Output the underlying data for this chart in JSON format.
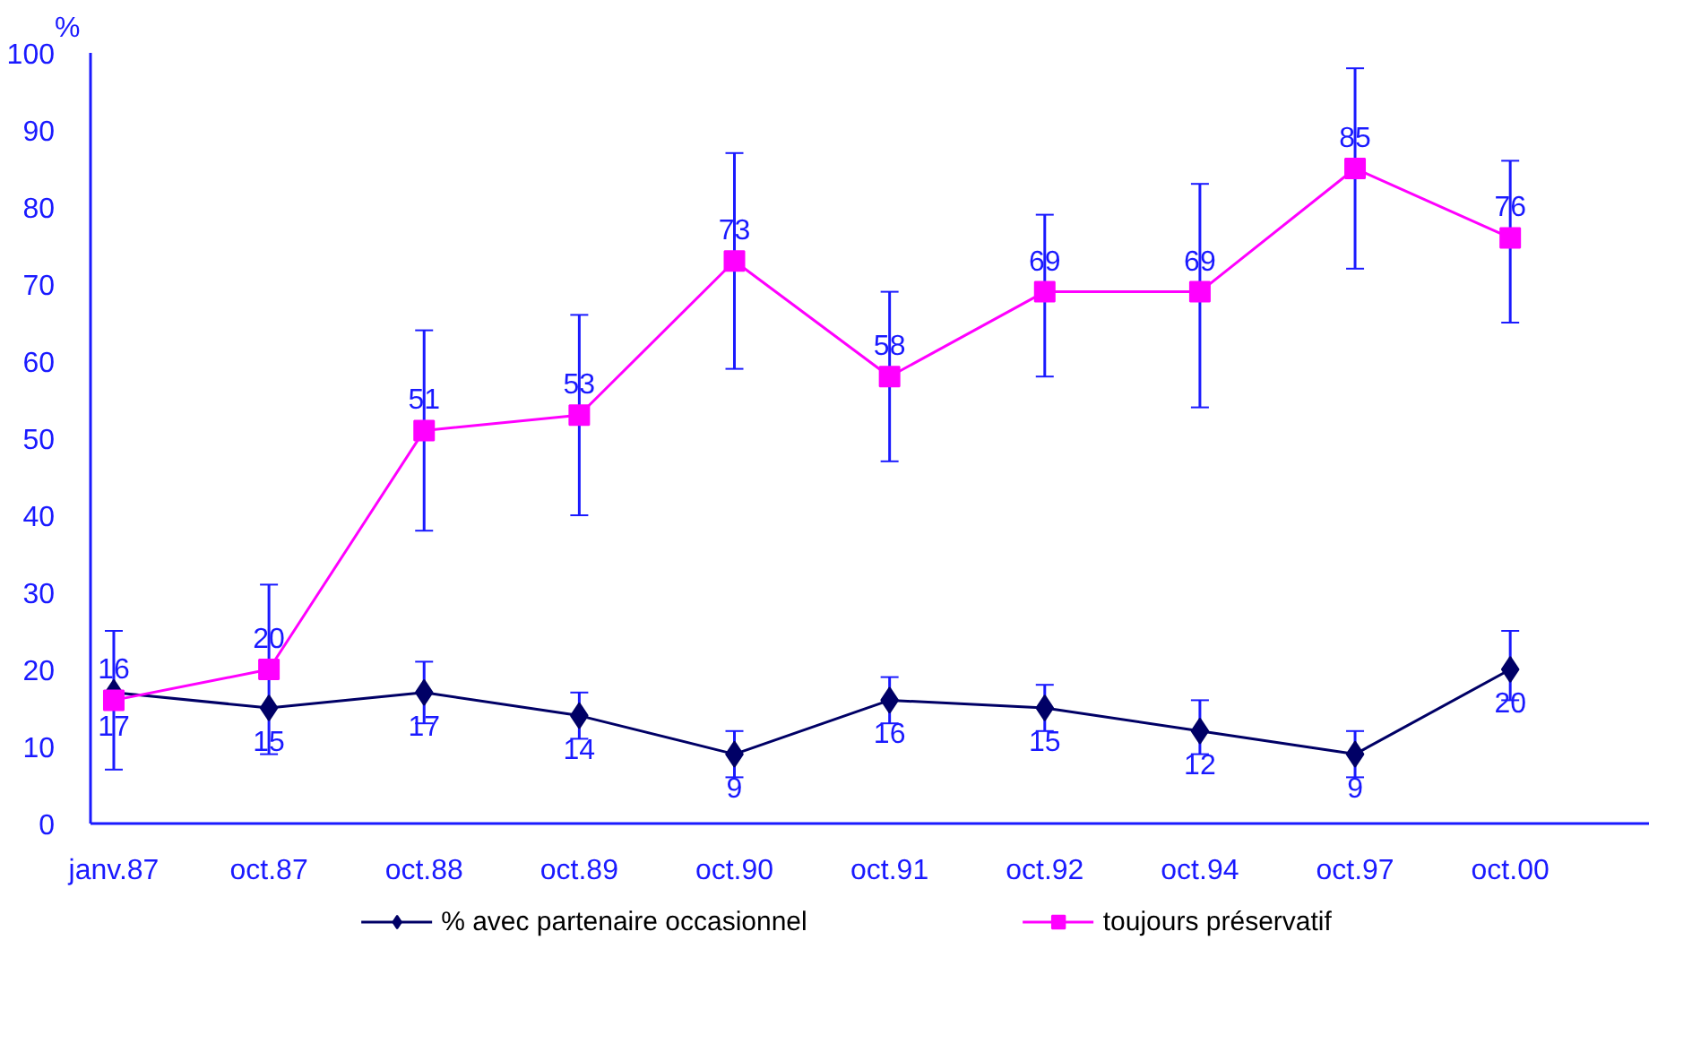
{
  "chart_data": {
    "type": "line",
    "ylabel": "%",
    "categories": [
      "janv.87",
      "oct.87",
      "oct.88",
      "oct.89",
      "oct.90",
      "oct.91",
      "oct.92",
      "oct.94",
      "oct.97",
      "oct.00"
    ],
    "series": [
      {
        "name": "% avec partenaire occasionnel",
        "color": "#000066",
        "marker": "diamond",
        "values": [
          17,
          15,
          17,
          14,
          9,
          16,
          15,
          12,
          9,
          20
        ],
        "errors": [
          null,
          null,
          4,
          [
            11,
            17
          ],
          [
            6,
            12
          ],
          [
            13,
            19
          ],
          [
            12,
            18
          ],
          [
            9,
            16
          ],
          [
            6,
            12
          ],
          [
            16,
            25
          ]
        ]
      },
      {
        "name": "toujours préservatif",
        "color": "#ff00ff",
        "marker": "square",
        "values": [
          16,
          20,
          51,
          53,
          73,
          58,
          69,
          69,
          85,
          76
        ],
        "errors": [
          [
            7,
            25
          ],
          [
            9,
            31
          ],
          [
            38,
            64
          ],
          [
            40,
            66
          ],
          [
            59,
            87
          ],
          [
            47,
            69
          ],
          [
            58,
            79
          ],
          [
            54,
            83
          ],
          [
            72,
            98
          ],
          [
            65,
            86
          ]
        ]
      }
    ],
    "ylim": [
      0,
      100
    ],
    "yticks": [
      0,
      10,
      20,
      30,
      40,
      50,
      60,
      70,
      80,
      90,
      100
    ],
    "grid": false,
    "legend": "bottom",
    "data_labels": true,
    "line_style": "solid"
  }
}
